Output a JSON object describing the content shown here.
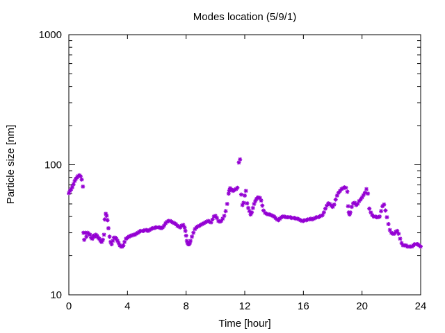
{
  "chart_data": {
    "type": "scatter",
    "title": "Modes location (5/9/1)",
    "xlabel": "Time [hour]",
    "ylabel": "Particle size [nm]",
    "xlim": [
      0,
      24
    ],
    "ylim": [
      10,
      1000
    ],
    "yscale": "log",
    "xticks": [
      0,
      4,
      8,
      12,
      16,
      20,
      24
    ],
    "xtick_labels": [
      "0",
      "4",
      "8",
      "12",
      "16",
      "20",
      "24"
    ],
    "yticks": [
      10,
      100,
      1000
    ],
    "ytick_labels": [
      "10",
      "100",
      "1000"
    ],
    "grid": false,
    "marker_color": "#9400d3",
    "series": [
      {
        "points": [
          [
            0.0,
            60.5
          ],
          [
            0.08,
            63
          ],
          [
            0.16,
            65
          ],
          [
            0.24,
            67.5
          ],
          [
            0.32,
            71
          ],
          [
            0.4,
            75
          ],
          [
            0.48,
            78
          ],
          [
            0.56,
            80
          ],
          [
            0.64,
            82
          ],
          [
            0.72,
            83
          ],
          [
            0.8,
            81.5
          ],
          [
            0.88,
            77
          ],
          [
            0.96,
            68
          ],
          [
            1.0,
            30
          ],
          [
            1.05,
            26.5
          ],
          [
            1.12,
            30
          ],
          [
            1.2,
            28
          ],
          [
            1.28,
            30
          ],
          [
            1.36,
            29.5
          ],
          [
            1.44,
            29
          ],
          [
            1.52,
            27.5
          ],
          [
            1.6,
            27
          ],
          [
            1.68,
            28.5
          ],
          [
            1.76,
            28
          ],
          [
            1.84,
            29
          ],
          [
            1.92,
            28.5
          ],
          [
            2.0,
            27.5
          ],
          [
            2.08,
            27
          ],
          [
            2.16,
            26
          ],
          [
            2.24,
            25.5
          ],
          [
            2.32,
            26.5
          ],
          [
            2.4,
            29
          ],
          [
            2.45,
            38
          ],
          [
            2.52,
            42
          ],
          [
            2.58,
            40.5
          ],
          [
            2.64,
            37.5
          ],
          [
            2.7,
            32.5
          ],
          [
            2.78,
            28
          ],
          [
            2.85,
            25.5
          ],
          [
            2.92,
            24.5
          ],
          [
            3.0,
            26
          ],
          [
            3.08,
            27.5
          ],
          [
            3.16,
            27.5
          ],
          [
            3.24,
            27
          ],
          [
            3.32,
            26
          ],
          [
            3.4,
            25
          ],
          [
            3.48,
            24
          ],
          [
            3.56,
            23.5
          ],
          [
            3.64,
            23.5
          ],
          [
            3.72,
            24
          ],
          [
            3.8,
            25.5
          ],
          [
            3.9,
            27
          ],
          [
            4.0,
            27.5
          ],
          [
            4.1,
            28
          ],
          [
            4.2,
            28.5
          ],
          [
            4.3,
            28.5
          ],
          [
            4.4,
            29
          ],
          [
            4.5,
            29
          ],
          [
            4.6,
            29.5
          ],
          [
            4.7,
            30
          ],
          [
            4.8,
            30.5
          ],
          [
            4.9,
            31
          ],
          [
            5.0,
            31
          ],
          [
            5.1,
            31
          ],
          [
            5.2,
            31.5
          ],
          [
            5.3,
            31.5
          ],
          [
            5.4,
            31
          ],
          [
            5.5,
            31.5
          ],
          [
            5.6,
            32
          ],
          [
            5.7,
            32.5
          ],
          [
            5.8,
            32.5
          ],
          [
            5.9,
            33
          ],
          [
            6.0,
            33
          ],
          [
            6.1,
            33
          ],
          [
            6.2,
            33
          ],
          [
            6.3,
            32.5
          ],
          [
            6.4,
            33
          ],
          [
            6.5,
            34
          ],
          [
            6.6,
            35.5
          ],
          [
            6.7,
            36.5
          ],
          [
            6.8,
            37
          ],
          [
            6.9,
            37
          ],
          [
            7.0,
            36.5
          ],
          [
            7.1,
            36
          ],
          [
            7.2,
            35.5
          ],
          [
            7.3,
            35
          ],
          [
            7.4,
            34
          ],
          [
            7.5,
            33.5
          ],
          [
            7.6,
            33
          ],
          [
            7.7,
            34
          ],
          [
            7.8,
            34.5
          ],
          [
            7.9,
            33
          ],
          [
            7.95,
            31
          ],
          [
            8.0,
            28.5
          ],
          [
            8.05,
            26
          ],
          [
            8.1,
            25
          ],
          [
            8.15,
            24.5
          ],
          [
            8.2,
            24.5
          ],
          [
            8.25,
            25
          ],
          [
            8.3,
            26
          ],
          [
            8.4,
            28
          ],
          [
            8.5,
            30
          ],
          [
            8.6,
            32
          ],
          [
            8.7,
            33
          ],
          [
            8.8,
            33.5
          ],
          [
            8.9,
            34
          ],
          [
            9.0,
            34.5
          ],
          [
            9.1,
            35
          ],
          [
            9.2,
            35.5
          ],
          [
            9.3,
            36
          ],
          [
            9.4,
            36.5
          ],
          [
            9.5,
            37
          ],
          [
            9.6,
            36.5
          ],
          [
            9.7,
            36
          ],
          [
            9.8,
            38
          ],
          [
            9.9,
            40
          ],
          [
            10.0,
            40.5
          ],
          [
            10.1,
            39
          ],
          [
            10.2,
            37
          ],
          [
            10.3,
            36.5
          ],
          [
            10.4,
            37
          ],
          [
            10.5,
            38.5
          ],
          [
            10.6,
            40.5
          ],
          [
            10.7,
            44
          ],
          [
            10.8,
            50
          ],
          [
            10.9,
            60
          ],
          [
            10.95,
            63.5
          ],
          [
            11.0,
            66
          ],
          [
            11.1,
            64.5
          ],
          [
            11.2,
            63
          ],
          [
            11.3,
            64
          ],
          [
            11.4,
            65
          ],
          [
            11.5,
            66.5
          ],
          [
            11.6,
            104
          ],
          [
            11.68,
            110
          ],
          [
            11.76,
            59
          ],
          [
            11.84,
            49
          ],
          [
            11.92,
            51
          ],
          [
            12.0,
            58
          ],
          [
            12.08,
            63
          ],
          [
            12.16,
            50.5
          ],
          [
            12.24,
            46.5
          ],
          [
            12.32,
            44
          ],
          [
            12.4,
            41.5
          ],
          [
            12.48,
            43
          ],
          [
            12.56,
            46.5
          ],
          [
            12.64,
            50
          ],
          [
            12.72,
            52.5
          ],
          [
            12.8,
            54.5
          ],
          [
            12.88,
            56
          ],
          [
            12.96,
            56
          ],
          [
            13.04,
            55.5
          ],
          [
            13.12,
            53
          ],
          [
            13.2,
            48.5
          ],
          [
            13.28,
            44.5
          ],
          [
            13.4,
            42.5
          ],
          [
            13.5,
            42
          ],
          [
            13.6,
            41.5
          ],
          [
            13.7,
            41.5
          ],
          [
            13.8,
            41
          ],
          [
            13.9,
            40.5
          ],
          [
            14.0,
            40
          ],
          [
            14.1,
            39
          ],
          [
            14.2,
            38
          ],
          [
            14.3,
            37.5
          ],
          [
            14.4,
            38.5
          ],
          [
            14.5,
            39.5
          ],
          [
            14.6,
            40
          ],
          [
            14.7,
            40
          ],
          [
            14.8,
            39.5
          ],
          [
            14.9,
            39.5
          ],
          [
            15.0,
            39.5
          ],
          [
            15.1,
            39.5
          ],
          [
            15.2,
            39
          ],
          [
            15.3,
            39
          ],
          [
            15.4,
            39
          ],
          [
            15.5,
            38.5
          ],
          [
            15.6,
            38.5
          ],
          [
            15.7,
            38
          ],
          [
            15.8,
            37.5
          ],
          [
            15.9,
            37
          ],
          [
            16.0,
            37
          ],
          [
            16.1,
            37.5
          ],
          [
            16.2,
            37.5
          ],
          [
            16.3,
            38
          ],
          [
            16.4,
            38
          ],
          [
            16.5,
            38.5
          ],
          [
            16.6,
            38
          ],
          [
            16.7,
            38.5
          ],
          [
            16.8,
            39
          ],
          [
            16.9,
            39.5
          ],
          [
            17.0,
            39.5
          ],
          [
            17.1,
            40
          ],
          [
            17.2,
            40.5
          ],
          [
            17.3,
            41
          ],
          [
            17.4,
            43
          ],
          [
            17.5,
            46
          ],
          [
            17.6,
            48.5
          ],
          [
            17.7,
            50.5
          ],
          [
            17.8,
            50
          ],
          [
            17.9,
            48.5
          ],
          [
            18.0,
            47.5
          ],
          [
            18.1,
            49.5
          ],
          [
            18.2,
            54
          ],
          [
            18.3,
            58
          ],
          [
            18.4,
            61
          ],
          [
            18.5,
            63
          ],
          [
            18.6,
            65
          ],
          [
            18.7,
            66
          ],
          [
            18.8,
            67
          ],
          [
            18.9,
            66.5
          ],
          [
            19.0,
            62
          ],
          [
            19.05,
            48
          ],
          [
            19.1,
            43
          ],
          [
            19.15,
            41.5
          ],
          [
            19.2,
            43
          ],
          [
            19.3,
            47.5
          ],
          [
            19.4,
            50.5
          ],
          [
            19.5,
            51
          ],
          [
            19.6,
            49
          ],
          [
            19.7,
            50
          ],
          [
            19.8,
            52.5
          ],
          [
            19.9,
            54
          ],
          [
            20.0,
            56
          ],
          [
            20.1,
            58.5
          ],
          [
            20.2,
            61
          ],
          [
            20.3,
            65
          ],
          [
            20.4,
            60
          ],
          [
            20.5,
            46
          ],
          [
            20.6,
            43
          ],
          [
            20.7,
            41
          ],
          [
            20.8,
            40
          ],
          [
            20.9,
            40
          ],
          [
            21.0,
            39.5
          ],
          [
            21.1,
            39.5
          ],
          [
            21.2,
            40
          ],
          [
            21.3,
            44
          ],
          [
            21.4,
            48
          ],
          [
            21.5,
            49.5
          ],
          [
            21.6,
            44.5
          ],
          [
            21.7,
            39.5
          ],
          [
            21.8,
            35
          ],
          [
            21.9,
            31.5
          ],
          [
            22.0,
            30
          ],
          [
            22.1,
            29.5
          ],
          [
            22.2,
            29.5
          ],
          [
            22.3,
            30.5
          ],
          [
            22.4,
            31
          ],
          [
            22.5,
            29.5
          ],
          [
            22.6,
            27
          ],
          [
            22.7,
            25
          ],
          [
            22.8,
            24
          ],
          [
            22.9,
            24
          ],
          [
            23.0,
            24
          ],
          [
            23.1,
            23.5
          ],
          [
            23.2,
            23.5
          ],
          [
            23.3,
            23.5
          ],
          [
            23.4,
            23.5
          ],
          [
            23.5,
            24
          ],
          [
            23.6,
            24.5
          ],
          [
            23.7,
            24.5
          ],
          [
            23.8,
            24.5
          ],
          [
            23.9,
            24
          ],
          [
            24.0,
            23.5
          ]
        ]
      }
    ]
  }
}
